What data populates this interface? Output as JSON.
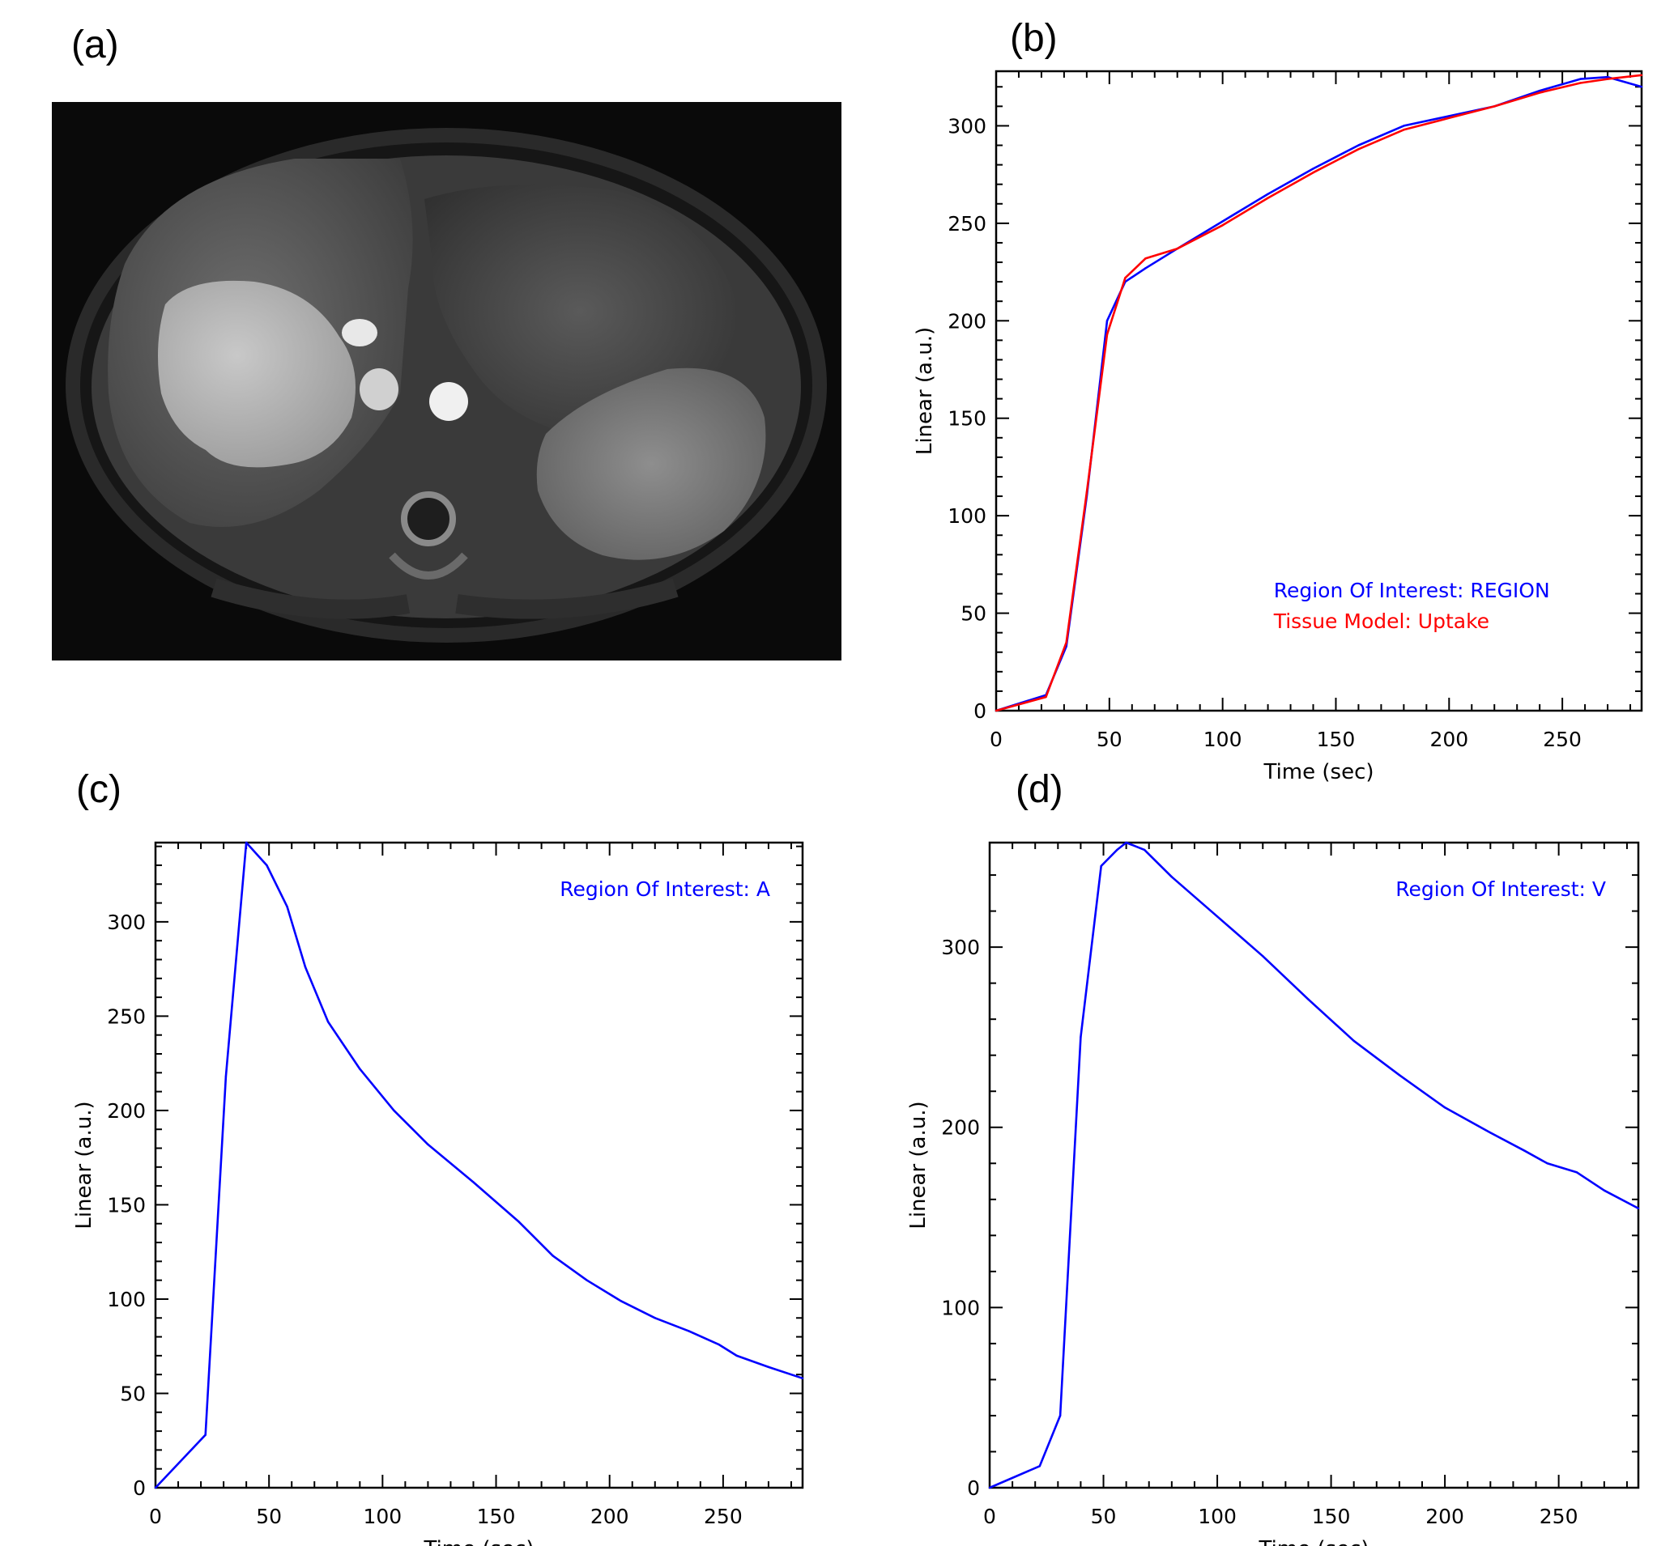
{
  "panels": {
    "a": {
      "label": "(a)"
    },
    "b": {
      "label": "(b)"
    },
    "c": {
      "label": "(c)"
    },
    "d": {
      "label": "(d)"
    }
  },
  "colors": {
    "blue": "#0000ff",
    "red": "#ff0000",
    "axis": "#000000"
  },
  "chart_data": [
    {
      "id": "b",
      "type": "line",
      "xlabel": "Time (sec)",
      "ylabel": "Linear (a.u.)",
      "xlim": [
        0,
        285
      ],
      "ylim": [
        0,
        328
      ],
      "xticks": [
        0,
        50,
        100,
        150,
        200,
        250
      ],
      "yticks": [
        0,
        50,
        100,
        150,
        200,
        250,
        300
      ],
      "legend": "lower-right",
      "series": [
        {
          "name": "Region Of Interest: REGION",
          "color": "#0000ff",
          "x": [
            0,
            22,
            31,
            40,
            49,
            57,
            66,
            80,
            100,
            120,
            140,
            160,
            180,
            200,
            220,
            240,
            258,
            270,
            285
          ],
          "y": [
            0,
            8,
            33,
            110,
            200,
            220,
            227,
            237,
            251,
            265,
            278,
            290,
            300,
            305,
            310,
            318,
            324,
            325,
            320
          ]
        },
        {
          "name": "Tissue Model: Uptake",
          "color": "#ff0000",
          "x": [
            0,
            22,
            31,
            40,
            49,
            57,
            66,
            80,
            100,
            120,
            140,
            160,
            180,
            200,
            220,
            240,
            258,
            270,
            285
          ],
          "y": [
            0,
            7,
            35,
            112,
            193,
            222,
            232,
            237,
            249,
            263,
            276,
            288,
            298,
            304,
            310,
            317,
            322,
            324,
            326
          ]
        }
      ]
    },
    {
      "id": "c",
      "type": "line",
      "xlabel": "Time (sec)",
      "ylabel": "Linear (a.u.)",
      "xlim": [
        0,
        285
      ],
      "ylim": [
        0,
        342
      ],
      "xticks": [
        0,
        50,
        100,
        150,
        200,
        250
      ],
      "yticks": [
        0,
        50,
        100,
        150,
        200,
        250,
        300
      ],
      "legend": "top-right",
      "series": [
        {
          "name": "Region Of Interest: A",
          "color": "#0000ff",
          "x": [
            0,
            22,
            31,
            40,
            49,
            58,
            66,
            76,
            90,
            105,
            120,
            140,
            160,
            175,
            190,
            205,
            220,
            235,
            248,
            256,
            270,
            285
          ],
          "y": [
            0,
            28,
            218,
            342,
            330,
            308,
            276,
            247,
            222,
            200,
            182,
            162,
            141,
            123,
            110,
            99,
            90,
            83,
            76,
            70,
            64,
            58
          ]
        }
      ]
    },
    {
      "id": "d",
      "type": "line",
      "xlabel": "Time (sec)",
      "ylabel": "Linear (a.u.)",
      "xlim": [
        0,
        285
      ],
      "ylim": [
        0,
        358
      ],
      "xticks": [
        0,
        50,
        100,
        150,
        200,
        250
      ],
      "yticks": [
        0,
        100,
        200,
        300
      ],
      "legend": "top-right",
      "series": [
        {
          "name": "Region Of Interest: V",
          "color": "#0000ff",
          "x": [
            0,
            22,
            31,
            40,
            49,
            56,
            60,
            68,
            80,
            100,
            120,
            140,
            160,
            180,
            200,
            220,
            235,
            245,
            258,
            270,
            285
          ],
          "y": [
            0,
            12,
            40,
            250,
            345,
            354,
            358,
            354,
            339,
            317,
            295,
            271,
            248,
            229,
            211,
            197,
            187,
            180,
            175,
            165,
            155
          ]
        }
      ]
    }
  ]
}
